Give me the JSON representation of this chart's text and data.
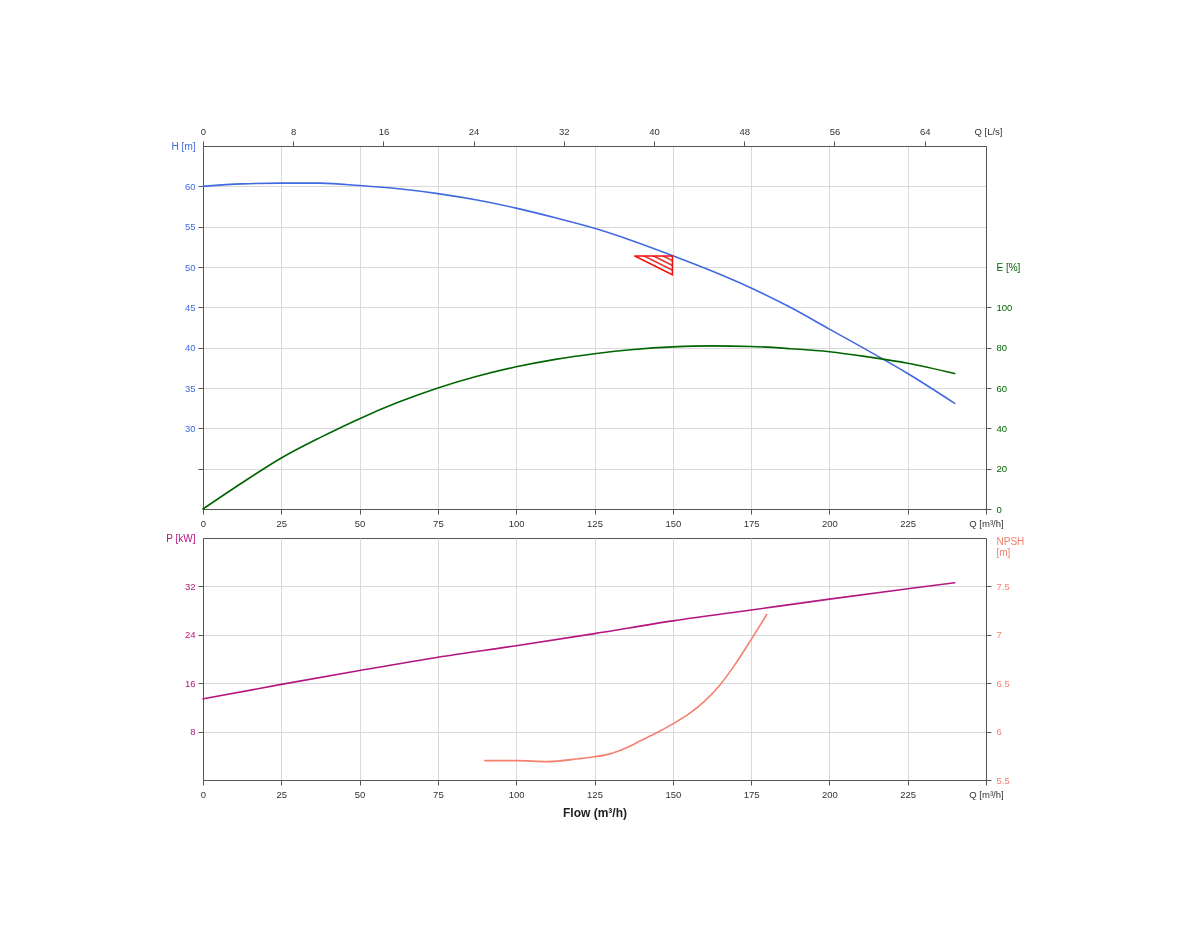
{
  "chart_data": [
    {
      "type": "line",
      "x": [
        0,
        12.5,
        25,
        37.5,
        50,
        62.5,
        75,
        87.5,
        100,
        112.5,
        125,
        137.5,
        150,
        162.5,
        175,
        187.5,
        200,
        212.5,
        225,
        240
      ],
      "ylabel": "H [m]",
      "y2label": "E [%]",
      "x2label": "Q [L/s]",
      "xlim": [
        0,
        250
      ],
      "xticks": [
        0,
        25,
        50,
        75,
        100,
        125,
        150,
        175,
        200,
        225,
        {
          "value": 250,
          "label": "Q [m³/h]"
        }
      ],
      "x2lim": [
        0,
        69.44
      ],
      "x2ticks": [
        0,
        8,
        16,
        24,
        32,
        40,
        48,
        56,
        64
      ],
      "ylim": [
        20,
        65
      ],
      "yticks": [
        {
          "value": 25,
          "label": null
        },
        30,
        35,
        40,
        45,
        50,
        55,
        60
      ],
      "y2lim": [
        0,
        180
      ],
      "y2ticks": [
        0,
        20,
        40,
        60,
        80,
        100
      ],
      "grid": true,
      "series": [
        {
          "color": "#4169e1",
          "values": [
            60.0,
            60.3,
            60.4,
            60.4,
            60.1,
            59.7,
            59.1,
            58.3,
            57.3,
            56.1,
            54.8,
            53.2,
            51.4,
            49.5,
            47.4,
            45.0,
            42.3,
            39.6,
            36.8,
            33.1
          ]
        },
        {
          "color": "#006400",
          "axis": "y2",
          "values": [
            0,
            13.0,
            25.3,
            35.5,
            44.8,
            53.0,
            60.0,
            65.8,
            70.5,
            74.2,
            77.0,
            79.1,
            80.4,
            80.9,
            80.6,
            79.5,
            78.0,
            75.4,
            72.3,
            67.2
          ]
        },
        {
          "type": "scatter",
          "marker": "triangle",
          "color": "#ee1111",
          "x": [
            143.8
          ],
          "values": [
            50.2
          ]
        }
      ]
    },
    {
      "type": "line",
      "x": [
        0,
        25,
        50,
        75,
        100,
        125,
        150,
        175,
        200,
        225,
        240
      ],
      "ylabel": "P [kW]",
      "y2label": "NPSH [m]",
      "xlabel": "Flow (m³/h)",
      "xlim": [
        0,
        250
      ],
      "xticks": [
        0,
        25,
        50,
        75,
        100,
        125,
        150,
        175,
        200,
        225,
        {
          "value": 250,
          "label": "Q [m³/h]"
        }
      ],
      "ylim": [
        0,
        40
      ],
      "yticks": [
        8,
        16,
        24,
        32
      ],
      "y2lim": [
        5.5,
        8
      ],
      "y2ticks": [
        5.5,
        6,
        6.5,
        7,
        7.5
      ],
      "grid": true,
      "series": [
        {
          "color": "#b5157f",
          "values": [
            13.4,
            15.8,
            18.1,
            20.3,
            22.2,
            24.2,
            26.3,
            28.1,
            29.9,
            31.6,
            32.6
          ]
        },
        {
          "color": "#f4806f",
          "axis": "y2",
          "x": [
            90,
            100,
            110,
            120,
            125,
            130,
            135,
            140,
            145,
            150,
            155,
            160,
            165,
            170,
            175,
            180
          ],
          "values": [
            5.7,
            5.7,
            5.69,
            5.72,
            5.74,
            5.77,
            5.83,
            5.91,
            5.99,
            6.08,
            6.18,
            6.31,
            6.48,
            6.7,
            6.95,
            7.21
          ]
        }
      ]
    }
  ]
}
